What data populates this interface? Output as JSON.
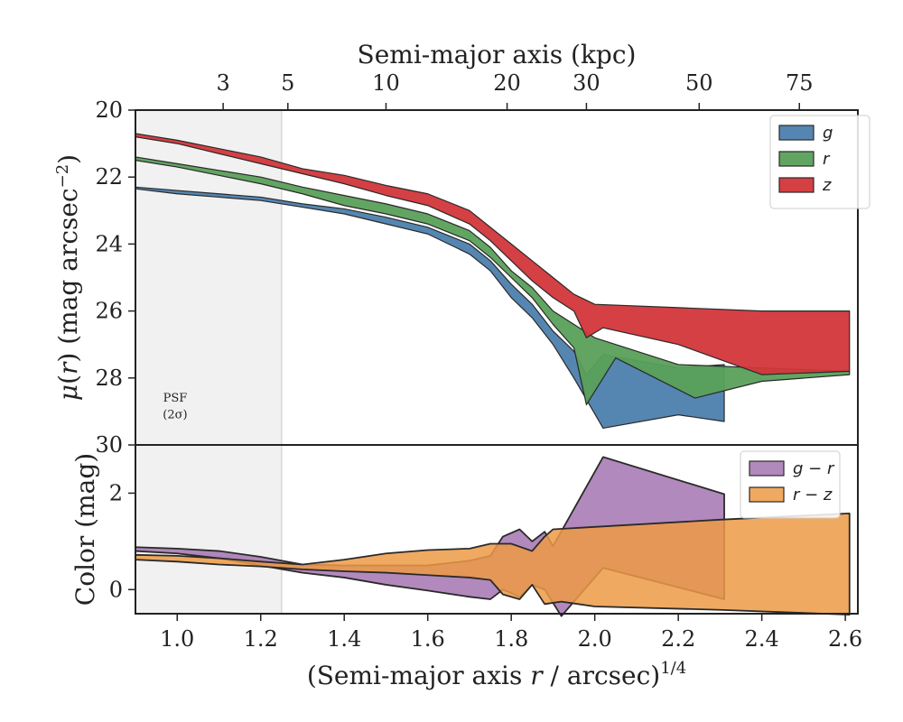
{
  "chart_data": [
    {
      "type": "area",
      "panel": "surface-brightness",
      "title": "",
      "ylabel": "μ(r) (mag arcsec⁻²)",
      "xlabel_top": "Semi-major axis (kpc)",
      "xlim": [
        0.9,
        2.63
      ],
      "ylim": [
        30,
        20
      ],
      "y_inverted": true,
      "y_ticks": [
        20,
        22,
        24,
        26,
        28,
        30
      ],
      "top_axis_ticks": [
        {
          "label": "3",
          "x": 1.11
        },
        {
          "label": "5",
          "x": 1.265
        },
        {
          "label": "10",
          "x": 1.5
        },
        {
          "label": "20",
          "x": 1.79
        },
        {
          "label": "30",
          "x": 1.98
        },
        {
          "label": "50",
          "x": 2.25
        },
        {
          "label": "75",
          "x": 2.49
        }
      ],
      "psf_region": {
        "x_max": 1.25,
        "label_line1": "PSF",
        "label_line2": "(2σ)"
      },
      "legend_position": "top-right",
      "series": [
        {
          "name": "g",
          "color": "#4c7fad",
          "upper": [
            [
              0.9,
              22.3
            ],
            [
              1.0,
              22.4
            ],
            [
              1.1,
              22.5
            ],
            [
              1.2,
              22.6
            ],
            [
              1.3,
              22.8
            ],
            [
              1.4,
              22.95
            ],
            [
              1.5,
              23.2
            ],
            [
              1.6,
              23.5
            ],
            [
              1.7,
              24.0
            ],
            [
              1.75,
              24.5
            ],
            [
              1.8,
              25.2
            ],
            [
              1.85,
              25.8
            ],
            [
              1.9,
              26.6
            ],
            [
              1.95,
              27.2
            ],
            [
              1.98,
              27.9
            ],
            [
              2.02,
              27.3
            ],
            [
              2.2,
              27.7
            ],
            [
              2.31,
              27.6
            ]
          ],
          "lower": [
            [
              0.9,
              22.35
            ],
            [
              1.0,
              22.5
            ],
            [
              1.1,
              22.6
            ],
            [
              1.2,
              22.7
            ],
            [
              1.3,
              22.9
            ],
            [
              1.4,
              23.1
            ],
            [
              1.5,
              23.4
            ],
            [
              1.6,
              23.7
            ],
            [
              1.7,
              24.3
            ],
            [
              1.75,
              24.8
            ],
            [
              1.8,
              25.6
            ],
            [
              1.85,
              26.2
            ],
            [
              1.9,
              27.0
            ],
            [
              1.95,
              28.0
            ],
            [
              2.02,
              29.5
            ],
            [
              2.2,
              29.1
            ],
            [
              2.31,
              29.3
            ]
          ]
        },
        {
          "name": "r",
          "color": "#5aa05a",
          "upper": [
            [
              0.9,
              21.4
            ],
            [
              1.0,
              21.6
            ],
            [
              1.1,
              21.8
            ],
            [
              1.2,
              22.0
            ],
            [
              1.3,
              22.3
            ],
            [
              1.4,
              22.55
            ],
            [
              1.5,
              22.8
            ],
            [
              1.6,
              23.1
            ],
            [
              1.7,
              23.6
            ],
            [
              1.75,
              24.1
            ],
            [
              1.8,
              24.8
            ],
            [
              1.85,
              25.3
            ],
            [
              1.9,
              26.0
            ],
            [
              2.0,
              26.8
            ],
            [
              2.2,
              27.6
            ],
            [
              2.4,
              27.7
            ],
            [
              2.61,
              27.8
            ]
          ],
          "lower": [
            [
              0.9,
              21.5
            ],
            [
              1.0,
              21.7
            ],
            [
              1.1,
              21.95
            ],
            [
              1.2,
              22.2
            ],
            [
              1.3,
              22.5
            ],
            [
              1.4,
              22.85
            ],
            [
              1.5,
              23.1
            ],
            [
              1.6,
              23.4
            ],
            [
              1.7,
              23.9
            ],
            [
              1.75,
              24.4
            ],
            [
              1.8,
              25.0
            ],
            [
              1.85,
              25.6
            ],
            [
              1.9,
              26.4
            ],
            [
              1.95,
              27.1
            ],
            [
              1.98,
              28.8
            ],
            [
              2.05,
              27.4
            ],
            [
              2.24,
              28.6
            ],
            [
              2.4,
              28.1
            ],
            [
              2.61,
              27.9
            ]
          ]
        },
        {
          "name": "z",
          "color": "#d2363a",
          "upper": [
            [
              0.9,
              20.7
            ],
            [
              1.0,
              20.9
            ],
            [
              1.1,
              21.15
            ],
            [
              1.2,
              21.4
            ],
            [
              1.3,
              21.75
            ],
            [
              1.4,
              21.95
            ],
            [
              1.5,
              22.25
            ],
            [
              1.6,
              22.5
            ],
            [
              1.7,
              23.0
            ],
            [
              1.75,
              23.5
            ],
            [
              1.8,
              24.0
            ],
            [
              1.85,
              24.5
            ],
            [
              1.9,
              25.0
            ],
            [
              1.95,
              25.5
            ],
            [
              2.0,
              25.8
            ],
            [
              2.2,
              25.9
            ],
            [
              2.4,
              26.0
            ],
            [
              2.61,
              26.0
            ]
          ],
          "lower": [
            [
              0.9,
              20.8
            ],
            [
              1.0,
              21.0
            ],
            [
              1.1,
              21.3
            ],
            [
              1.2,
              21.6
            ],
            [
              1.3,
              21.9
            ],
            [
              1.4,
              22.2
            ],
            [
              1.5,
              22.55
            ],
            [
              1.6,
              22.85
            ],
            [
              1.7,
              23.4
            ],
            [
              1.75,
              23.9
            ],
            [
              1.8,
              24.5
            ],
            [
              1.85,
              25.1
            ],
            [
              1.9,
              25.6
            ],
            [
              1.95,
              26.0
            ],
            [
              1.98,
              26.8
            ],
            [
              2.02,
              26.5
            ],
            [
              2.2,
              27.0
            ],
            [
              2.4,
              27.9
            ],
            [
              2.61,
              27.8
            ]
          ]
        }
      ]
    },
    {
      "type": "area",
      "panel": "color-profile",
      "title": "",
      "xlabel": "(Semi-major axis r / arcsec)¹ᐟ⁴",
      "ylabel": "Color (mag)",
      "xlim": [
        0.9,
        2.63
      ],
      "ylim": [
        -0.5,
        3.0
      ],
      "x_ticks": [
        1.0,
        1.2,
        1.4,
        1.6,
        1.8,
        2.0,
        2.2,
        2.4,
        2.6
      ],
      "x_tick_labels": [
        "1.0",
        "1.2",
        "1.4",
        "1.6",
        "1.8",
        "2.0",
        "2.2",
        "2.4",
        "2.6"
      ],
      "y_ticks": [
        0,
        2
      ],
      "legend_position": "top-right",
      "series": [
        {
          "name": "g − r",
          "color": "#a574b0",
          "upper": [
            [
              0.9,
              0.88
            ],
            [
              1.0,
              0.85
            ],
            [
              1.1,
              0.8
            ],
            [
              1.2,
              0.68
            ],
            [
              1.3,
              0.52
            ],
            [
              1.4,
              0.5
            ],
            [
              1.5,
              0.5
            ],
            [
              1.6,
              0.5
            ],
            [
              1.7,
              0.6
            ],
            [
              1.75,
              0.7
            ],
            [
              1.78,
              1.1
            ],
            [
              1.82,
              1.25
            ],
            [
              1.85,
              1.0
            ],
            [
              1.88,
              1.2
            ],
            [
              1.9,
              0.9
            ],
            [
              2.02,
              2.75
            ],
            [
              2.31,
              1.98
            ]
          ],
          "lower": [
            [
              0.9,
              0.8
            ],
            [
              1.0,
              0.75
            ],
            [
              1.1,
              0.65
            ],
            [
              1.2,
              0.5
            ],
            [
              1.3,
              0.35
            ],
            [
              1.4,
              0.25
            ],
            [
              1.5,
              0.1
            ],
            [
              1.6,
              -0.02
            ],
            [
              1.7,
              -0.15
            ],
            [
              1.75,
              -0.2
            ],
            [
              1.78,
              0.0
            ],
            [
              1.82,
              -0.15
            ],
            [
              1.85,
              0.1
            ],
            [
              1.88,
              0.0
            ],
            [
              1.92,
              -0.55
            ],
            [
              2.02,
              0.45
            ],
            [
              2.31,
              -0.2
            ]
          ]
        },
        {
          "name": "r − z",
          "color": "#ec9a45",
          "upper": [
            [
              0.9,
              0.72
            ],
            [
              1.0,
              0.7
            ],
            [
              1.1,
              0.65
            ],
            [
              1.2,
              0.58
            ],
            [
              1.3,
              0.52
            ],
            [
              1.4,
              0.62
            ],
            [
              1.5,
              0.75
            ],
            [
              1.6,
              0.82
            ],
            [
              1.7,
              0.85
            ],
            [
              1.75,
              0.95
            ],
            [
              1.8,
              0.95
            ],
            [
              1.85,
              0.8
            ],
            [
              1.88,
              1.1
            ],
            [
              1.9,
              1.25
            ],
            [
              2.0,
              1.3
            ],
            [
              2.3,
              1.45
            ],
            [
              2.61,
              1.58
            ]
          ],
          "lower": [
            [
              0.9,
              0.62
            ],
            [
              1.0,
              0.58
            ],
            [
              1.1,
              0.52
            ],
            [
              1.2,
              0.48
            ],
            [
              1.3,
              0.42
            ],
            [
              1.4,
              0.38
            ],
            [
              1.5,
              0.35
            ],
            [
              1.6,
              0.3
            ],
            [
              1.7,
              0.25
            ],
            [
              1.75,
              0.2
            ],
            [
              1.78,
              -0.1
            ],
            [
              1.82,
              -0.2
            ],
            [
              1.85,
              0.1
            ],
            [
              1.88,
              -0.3
            ],
            [
              1.92,
              -0.25
            ],
            [
              2.0,
              -0.35
            ],
            [
              2.3,
              -0.42
            ],
            [
              2.61,
              -0.52
            ]
          ]
        }
      ]
    }
  ]
}
